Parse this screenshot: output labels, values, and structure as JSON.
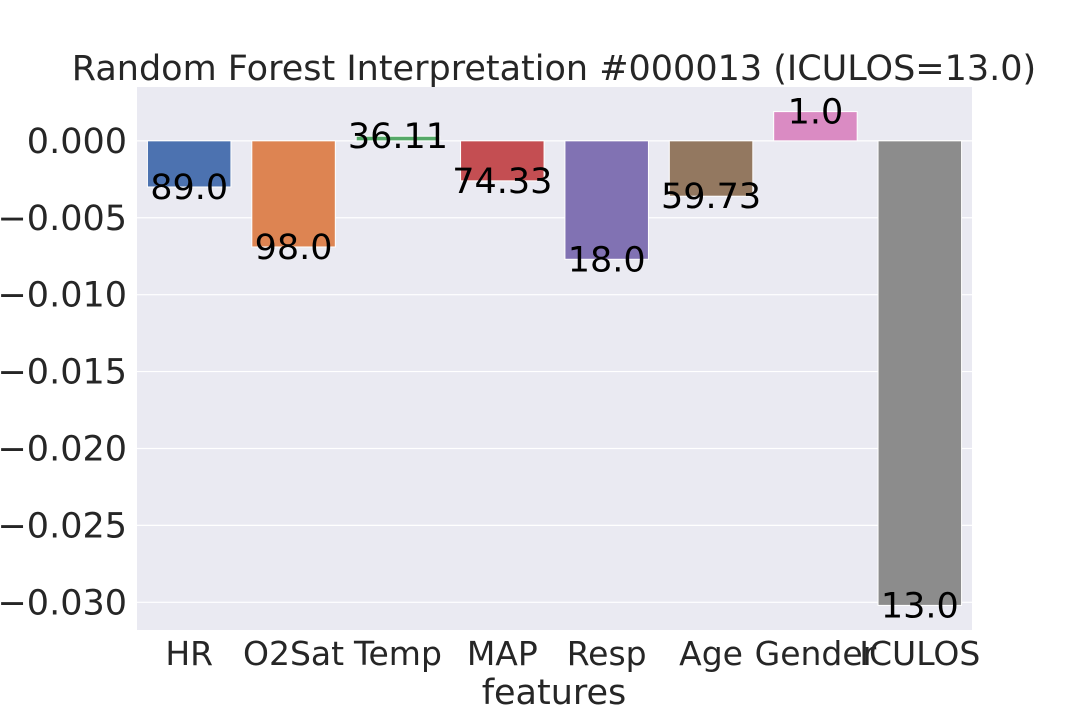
{
  "chart_data": {
    "type": "bar",
    "title": "Random Forest Interpretation #000013 (ICULOS=13.0)",
    "xlabel": "features",
    "ylabel": "",
    "categories": [
      "HR",
      "O2Sat",
      "Temp",
      "MAP",
      "Resp",
      "Age",
      "Gender",
      "ICULOS"
    ],
    "values": [
      -0.003,
      -0.0069,
      0.0003,
      -0.0026,
      -0.0077,
      -0.0036,
      0.0019,
      -0.0302
    ],
    "bar_labels": [
      "89.0",
      "98.0",
      "36.11",
      "74.33",
      "18.0",
      "59.73",
      "1.0",
      "13.0"
    ],
    "ylim": [
      -0.0318,
      0.0035
    ],
    "yticks": [
      0.0,
      -0.005,
      -0.01,
      -0.015,
      -0.02,
      -0.025,
      -0.03
    ],
    "ytick_labels": [
      "0.000",
      "−0.005",
      "−0.010",
      "−0.015",
      "−0.020",
      "−0.025",
      "−0.030"
    ],
    "colors": [
      "#4c72b0",
      "#dd8452",
      "#55a868",
      "#c44e52",
      "#8172b3",
      "#937860",
      "#da8bc3",
      "#8c8c8c"
    ],
    "grid": true,
    "legend": "none",
    "background": "#eaeaf2"
  }
}
